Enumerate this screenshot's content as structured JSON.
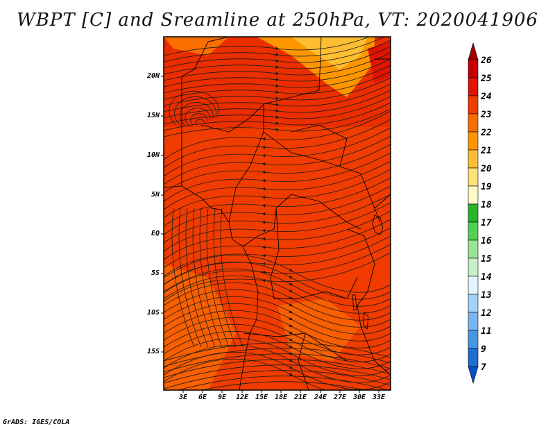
{
  "title": "WBPT [C] and Sreamline at 250hPa, VT: 2020041906",
  "credit": "GrADS: IGES/COLA",
  "map": {
    "lon_labels": [
      "3E",
      "6E",
      "9E",
      "12E",
      "15E",
      "18E",
      "21E",
      "24E",
      "27E",
      "30E",
      "33E"
    ],
    "lat_labels": [
      "20N",
      "15N",
      "10N",
      "5N",
      "EQ",
      "5S",
      "10S",
      "15S"
    ]
  },
  "colorbar": {
    "levels": [
      "26",
      "25",
      "24",
      "23",
      "22",
      "21",
      "20",
      "19",
      "18",
      "17",
      "16",
      "15",
      "14",
      "13",
      "12",
      "11",
      "9",
      "7"
    ],
    "colors": [
      "#a50000",
      "#c80000",
      "#e11400",
      "#f03c00",
      "#fa6e00",
      "#ff9600",
      "#ffbe32",
      "#ffe178",
      "#fffac8",
      "#28b428",
      "#50d250",
      "#96e696",
      "#c8f0c8",
      "#e1f5ff",
      "#a0d2fa",
      "#78b4f0",
      "#4696e6",
      "#1e6ed2",
      "#0050c8"
    ]
  }
}
